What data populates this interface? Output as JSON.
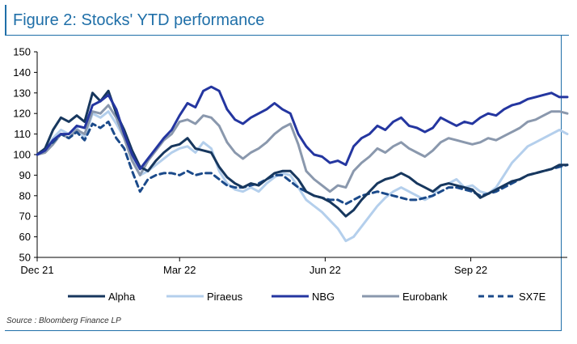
{
  "figure": {
    "title": "Figure 2: Stocks' YTD performance",
    "source": "Source : Bloomberg Finance LP"
  },
  "colors": {
    "frame": "#1f6fa8",
    "axis": "#000000",
    "Alpha": "#17375e",
    "Piraeus": "#b4cfec",
    "NBG": "#2436a0",
    "Eurobank": "#8a98ad",
    "SX7E": "#1b4a8a"
  },
  "chart_data": {
    "type": "line",
    "x_ticks": [
      "Dec 21",
      "Mar 22",
      "Jun 22",
      "Sep 22"
    ],
    "x_tick_days": [
      0,
      90,
      182,
      274
    ],
    "xlim_days": [
      0,
      335
    ],
    "ylim": [
      50,
      150
    ],
    "y_ticks": [
      50,
      60,
      70,
      80,
      90,
      100,
      110,
      120,
      130,
      140,
      150
    ],
    "grid": false,
    "legend_position": "bottom",
    "x_days": [
      0,
      5,
      10,
      15,
      20,
      25,
      30,
      35,
      40,
      45,
      50,
      55,
      60,
      65,
      70,
      75,
      80,
      85,
      90,
      95,
      100,
      105,
      110,
      115,
      120,
      125,
      130,
      135,
      140,
      145,
      150,
      155,
      160,
      165,
      170,
      175,
      180,
      185,
      190,
      195,
      200,
      205,
      210,
      215,
      220,
      225,
      230,
      235,
      240,
      245,
      250,
      255,
      260,
      265,
      270,
      275,
      280,
      285,
      290,
      295,
      300,
      305,
      310,
      315,
      320,
      325,
      330,
      335
    ],
    "series": [
      {
        "name": "Alpha",
        "style": "solid",
        "values": [
          100,
          103,
          112,
          118,
          116,
          119,
          116,
          130,
          126,
          131,
          120,
          112,
          102,
          94,
          92,
          97,
          101,
          104,
          105,
          108,
          103,
          102,
          101,
          94,
          89,
          86,
          84,
          86,
          85,
          88,
          91,
          92,
          92,
          88,
          82,
          80,
          79,
          77,
          74,
          70,
          73,
          78,
          82,
          86,
          88,
          89,
          91,
          89,
          86,
          84,
          82,
          85,
          86,
          85,
          84,
          83,
          79,
          81,
          83,
          85,
          87,
          88,
          90,
          91,
          92,
          93,
          95,
          95
        ]
      },
      {
        "name": "Piraeus",
        "style": "solid",
        "values": [
          100,
          102,
          108,
          112,
          110,
          113,
          108,
          120,
          118,
          121,
          115,
          108,
          98,
          90,
          92,
          95,
          98,
          101,
          103,
          104,
          101,
          106,
          103,
          92,
          86,
          83,
          82,
          84,
          82,
          86,
          89,
          91,
          90,
          84,
          78,
          75,
          72,
          68,
          64,
          58,
          60,
          65,
          70,
          75,
          79,
          82,
          84,
          82,
          80,
          78,
          80,
          85,
          86,
          88,
          84,
          85,
          82,
          81,
          84,
          90,
          96,
          100,
          104,
          106,
          108,
          110,
          112,
          110
        ]
      },
      {
        "name": "NBG",
        "style": "solid",
        "values": [
          100,
          102,
          107,
          110,
          110,
          114,
          113,
          124,
          126,
          129,
          122,
          110,
          100,
          93,
          98,
          103,
          108,
          112,
          119,
          125,
          123,
          131,
          133,
          131,
          122,
          117,
          115,
          118,
          120,
          122,
          125,
          122,
          120,
          110,
          104,
          100,
          99,
          96,
          97,
          95,
          104,
          108,
          110,
          114,
          112,
          116,
          118,
          114,
          113,
          111,
          113,
          118,
          116,
          114,
          116,
          115,
          118,
          120,
          119,
          122,
          124,
          125,
          127,
          128,
          129,
          130,
          128,
          128
        ]
      },
      {
        "name": "Eurobank",
        "style": "solid",
        "values": [
          100,
          101,
          105,
          110,
          108,
          112,
          110,
          121,
          120,
          124,
          118,
          108,
          97,
          90,
          97,
          102,
          107,
          110,
          116,
          117,
          115,
          119,
          118,
          114,
          106,
          101,
          98,
          101,
          103,
          106,
          110,
          113,
          115,
          105,
          92,
          88,
          85,
          82,
          85,
          84,
          92,
          96,
          99,
          103,
          101,
          104,
          106,
          103,
          101,
          99,
          102,
          106,
          108,
          107,
          106,
          105,
          106,
          108,
          107,
          109,
          111,
          113,
          116,
          117,
          119,
          121,
          121,
          120
        ]
      },
      {
        "name": "SX7E",
        "style": "dashed",
        "values": [
          100,
          103,
          106,
          110,
          108,
          111,
          107,
          115,
          113,
          116,
          108,
          103,
          92,
          82,
          88,
          90,
          91,
          91,
          90,
          92,
          90,
          91,
          91,
          88,
          85,
          84,
          84,
          85,
          86,
          88,
          90,
          90,
          87,
          84,
          82,
          80,
          79,
          78,
          78,
          76,
          78,
          80,
          81,
          82,
          81,
          80,
          79,
          78,
          78,
          79,
          80,
          82,
          84,
          84,
          83,
          82,
          80,
          81,
          82,
          84,
          86,
          88,
          90,
          91,
          92,
          93,
          94,
          95
        ]
      }
    ]
  }
}
